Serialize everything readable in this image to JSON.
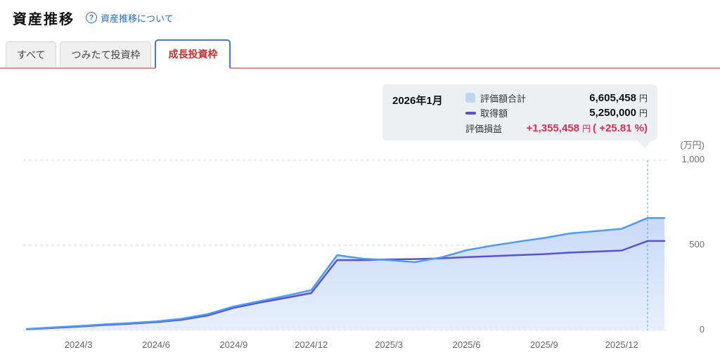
{
  "header": {
    "title": "資産推移",
    "help_label": "資産推移について",
    "help_icon": "?"
  },
  "tabs": [
    {
      "label": "すべて",
      "active": false
    },
    {
      "label": "つみたて投資枠",
      "active": false
    },
    {
      "label": "成長投資枠",
      "active": true
    }
  ],
  "tooltip": {
    "date": "2026年1月",
    "rows": [
      {
        "label": "評価額合計",
        "value": "6,605,458",
        "unit": "円"
      },
      {
        "label": "取得額",
        "value": "5,250,000",
        "unit": "円"
      },
      {
        "label": "評価損益",
        "value": "+1,355,458",
        "unit": "円",
        "pct": "( +25.81 %)"
      }
    ]
  },
  "chart_data": {
    "type": "area",
    "unit_label": "(万円)",
    "unit": "万円",
    "ylim": [
      0,
      1000
    ],
    "yticks": [
      0,
      500,
      1000
    ],
    "grid": "dashed-horizontal",
    "legend_position": "tooltip",
    "marker_x": "2026/1",
    "x": [
      "2024/1",
      "2024/2",
      "2024/3",
      "2024/4",
      "2024/5",
      "2024/6",
      "2024/7",
      "2024/8",
      "2024/9",
      "2024/10",
      "2024/11",
      "2024/12",
      "2025/1",
      "2025/2",
      "2025/3",
      "2025/4",
      "2025/5",
      "2025/6",
      "2025/7",
      "2025/8",
      "2025/9",
      "2025/10",
      "2025/11",
      "2025/12",
      "2026/1"
    ],
    "x_tick_labels": [
      "2024/3",
      "2024/6",
      "2024/9",
      "2024/12",
      "2025/3",
      "2025/6",
      "2025/9",
      "2025/12"
    ],
    "series": [
      {
        "name": "評価額合計",
        "type": "area",
        "values": [
          8,
          17,
          25,
          35,
          43,
          52,
          68,
          95,
          140,
          171,
          202,
          236,
          442,
          421,
          413,
          401,
          428,
          471,
          498,
          521,
          543,
          570,
          583,
          597,
          660.5
        ]
      },
      {
        "name": "取得額",
        "type": "line",
        "values": [
          6,
          14,
          22,
          31,
          39,
          48,
          62,
          87,
          132,
          163,
          190,
          219,
          413,
          413,
          417,
          419,
          423,
          430,
          436,
          442,
          448,
          457,
          463,
          469,
          525
        ]
      }
    ]
  },
  "colors": {
    "value_line": "#4d9df4",
    "value_fill_top": "#c9d9f7",
    "value_fill_bottom": "#e7f0fc",
    "cost_line": "#5b50d8",
    "legend_swatch_blue": "#bcd8f0",
    "gain_text": "#e72a52",
    "active_tab_text": "#c62f2f",
    "active_tab_border": "#3b7cd0",
    "tab_underline": "#ec8b8b",
    "help_link": "#1e6fbf",
    "tooltip_bg": "#edf0f3",
    "grid": "#d9d9d9",
    "marker": "#5e9bd8",
    "axis_text": "#707070"
  }
}
